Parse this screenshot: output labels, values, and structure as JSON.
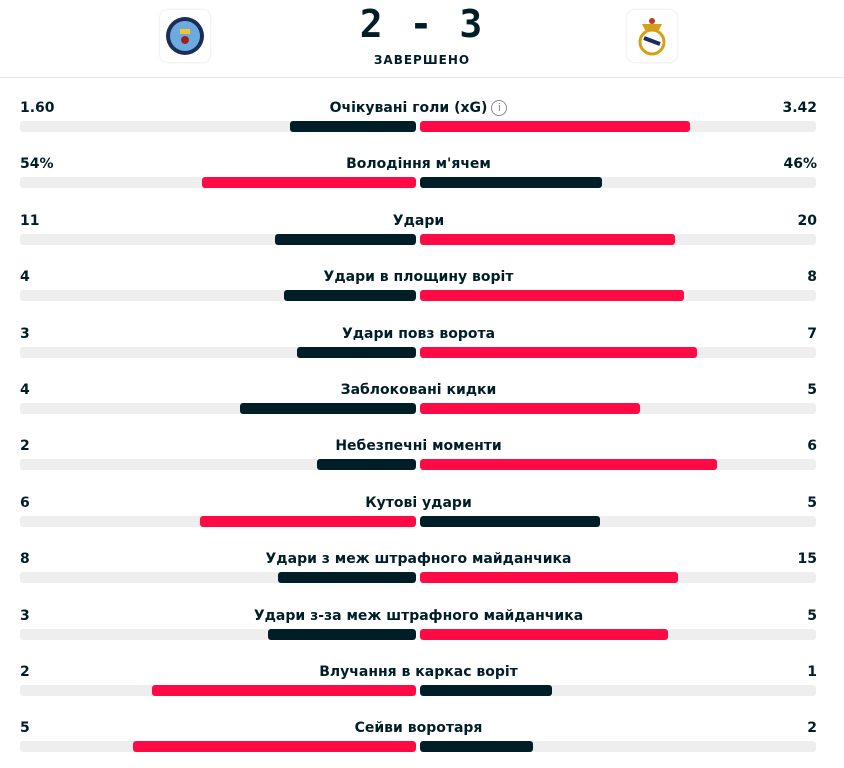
{
  "match": {
    "home_score": "2",
    "away_score": "3",
    "separator": "-",
    "status": "ЗАВЕРШЕНО",
    "home_logo": "manchester-city-crest",
    "away_logo": "real-madrid-crest"
  },
  "colors": {
    "leader": "#ff0a45",
    "other": "#001e28",
    "track": "#eeeeee"
  },
  "stats": [
    {
      "label": "Очікувані голи (xG)",
      "home": "1.60",
      "away": "3.42",
      "h": 1.6,
      "a": 3.42,
      "info": "i"
    },
    {
      "label": "Володіння м'ячем",
      "home": "54%",
      "away": "46%",
      "h": 54,
      "a": 46
    },
    {
      "label": "Удари",
      "home": "11",
      "away": "20",
      "h": 11,
      "a": 20
    },
    {
      "label": "Удари в площину воріт",
      "home": "4",
      "away": "8",
      "h": 4,
      "a": 8
    },
    {
      "label": "Удари повз ворота",
      "home": "3",
      "away": "7",
      "h": 3,
      "a": 7
    },
    {
      "label": "Заблоковані кидки",
      "home": "4",
      "away": "5",
      "h": 4,
      "a": 5
    },
    {
      "label": "Небезпечні моменти",
      "home": "2",
      "away": "6",
      "h": 2,
      "a": 6
    },
    {
      "label": "Кутові удари",
      "home": "6",
      "away": "5",
      "h": 6,
      "a": 5
    },
    {
      "label": "Удари з меж штрафного майданчика",
      "home": "8",
      "away": "15",
      "h": 8,
      "a": 15
    },
    {
      "label": "Удари з-за меж штрафного майданчика",
      "home": "3",
      "away": "5",
      "h": 3,
      "a": 5
    },
    {
      "label": "Влучання в каркас воріт",
      "home": "2",
      "away": "1",
      "h": 2,
      "a": 1
    },
    {
      "label": "Сейви воротаря",
      "home": "5",
      "away": "2",
      "h": 5,
      "a": 2
    }
  ]
}
